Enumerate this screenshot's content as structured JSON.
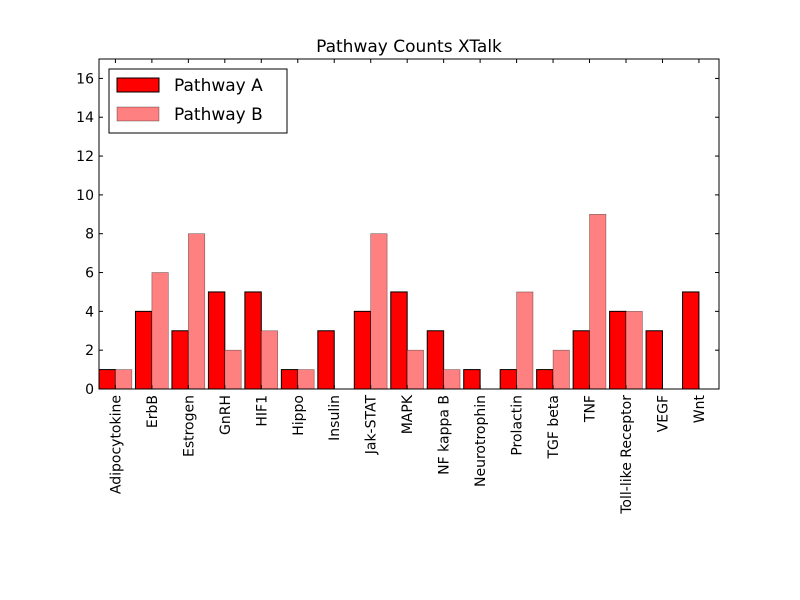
{
  "chart_data": {
    "type": "bar",
    "title": "Pathway Counts XTalk",
    "xlabel": "",
    "ylabel": "",
    "ylim": [
      0,
      17
    ],
    "yticks": [
      0,
      2,
      4,
      6,
      8,
      10,
      12,
      14,
      16
    ],
    "grid": false,
    "legend_position": "top-left",
    "categories": [
      "Adipocytokine",
      "ErbB",
      "Estrogen",
      "GnRH",
      "HIF1",
      "Hippo",
      "Insulin",
      "Jak-STAT",
      "MAPK",
      "NF kappa B",
      "Neurotrophin",
      "Prolactin",
      "TGF beta",
      "TNF",
      "Toll-like Receptor",
      "VEGF",
      "Wnt"
    ],
    "series": [
      {
        "name": "Pathway A",
        "color": "#ff0000",
        "values": [
          1,
          4,
          3,
          5,
          5,
          1,
          3,
          4,
          5,
          3,
          1,
          1,
          1,
          3,
          4,
          3,
          5
        ]
      },
      {
        "name": "Pathway B",
        "color": "#ff8080",
        "values": [
          1,
          6,
          8,
          2,
          3,
          1,
          0,
          8,
          2,
          1,
          0,
          5,
          2,
          9,
          4,
          0,
          0
        ]
      }
    ]
  }
}
